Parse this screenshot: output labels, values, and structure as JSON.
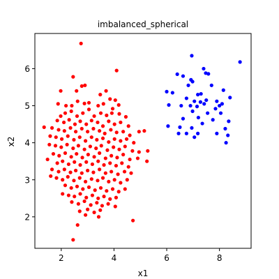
{
  "chart_data": {
    "type": "scatter",
    "title": "imbalanced_spherical",
    "xlabel": "x1",
    "ylabel": "x2",
    "xlim": [
      1.0,
      9.2
    ],
    "ylim": [
      1.15,
      6.95
    ],
    "xticks": [
      2,
      4,
      6,
      8
    ],
    "yticks": [
      2,
      3,
      4,
      5,
      6
    ],
    "grid": false,
    "series": [
      {
        "color": "#ff0000",
        "points": [
          [
            2.75,
            6.68
          ],
          [
            2.45,
            5.78
          ],
          [
            4.1,
            5.95
          ],
          [
            1.98,
            5.4
          ],
          [
            2.78,
            5.53
          ],
          [
            2.9,
            5.55
          ],
          [
            2.58,
            5.4
          ],
          [
            3.48,
            5.3
          ],
          [
            3.7,
            5.4
          ],
          [
            1.88,
            5.05
          ],
          [
            2.18,
            5.0
          ],
          [
            2.4,
            5.0
          ],
          [
            2.62,
            5.12
          ],
          [
            2.88,
            5.06
          ],
          [
            3.05,
            5.08
          ],
          [
            3.4,
            5.0
          ],
          [
            3.6,
            5.05
          ],
          [
            3.85,
            5.18
          ],
          [
            4.05,
            5.15
          ],
          [
            4.18,
            5.02
          ],
          [
            3.95,
            4.92
          ],
          [
            1.98,
            4.72
          ],
          [
            2.15,
            4.8
          ],
          [
            2.38,
            4.85
          ],
          [
            2.6,
            4.72
          ],
          [
            2.82,
            4.8
          ],
          [
            3.05,
            4.9
          ],
          [
            3.25,
            4.72
          ],
          [
            3.5,
            4.8
          ],
          [
            3.72,
            4.74
          ],
          [
            3.92,
            4.8
          ],
          [
            4.2,
            4.78
          ],
          [
            4.45,
            4.7
          ],
          [
            1.85,
            4.6
          ],
          [
            2.1,
            4.55
          ],
          [
            2.3,
            4.62
          ],
          [
            2.52,
            4.5
          ],
          [
            2.72,
            4.58
          ],
          [
            2.95,
            4.5
          ],
          [
            3.15,
            4.6
          ],
          [
            3.38,
            4.55
          ],
          [
            3.58,
            4.45
          ],
          [
            3.8,
            4.58
          ],
          [
            4.02,
            4.5
          ],
          [
            4.25,
            4.55
          ],
          [
            4.55,
            4.45
          ],
          [
            1.65,
            4.4
          ],
          [
            1.9,
            4.35
          ],
          [
            2.12,
            4.32
          ],
          [
            2.35,
            4.4
          ],
          [
            2.55,
            4.3
          ],
          [
            2.78,
            4.38
          ],
          [
            3.0,
            4.3
          ],
          [
            3.22,
            4.38
          ],
          [
            3.45,
            4.32
          ],
          [
            3.65,
            4.25
          ],
          [
            3.88,
            4.35
          ],
          [
            4.1,
            4.28
          ],
          [
            4.35,
            4.3
          ],
          [
            4.6,
            4.2
          ],
          [
            4.95,
            4.3
          ],
          [
            5.15,
            4.32
          ],
          [
            1.35,
            4.42
          ],
          [
            1.58,
            4.18
          ],
          [
            1.8,
            4.15
          ],
          [
            2.02,
            4.1
          ],
          [
            2.25,
            4.18
          ],
          [
            2.48,
            4.08
          ],
          [
            2.7,
            4.15
          ],
          [
            2.92,
            4.05
          ],
          [
            3.15,
            4.15
          ],
          [
            3.35,
            4.08
          ],
          [
            3.58,
            4.12
          ],
          [
            3.8,
            4.02
          ],
          [
            4.02,
            4.1
          ],
          [
            4.25,
            4.05
          ],
          [
            4.48,
            4.1
          ],
          [
            4.75,
            4.0
          ],
          [
            1.55,
            3.95
          ],
          [
            1.78,
            3.92
          ],
          [
            2.0,
            3.88
          ],
          [
            2.22,
            3.95
          ],
          [
            2.45,
            3.85
          ],
          [
            2.65,
            3.92
          ],
          [
            2.88,
            3.82
          ],
          [
            3.1,
            3.9
          ],
          [
            3.32,
            3.85
          ],
          [
            3.52,
            3.92
          ],
          [
            3.75,
            3.8
          ],
          [
            3.98,
            3.88
          ],
          [
            4.2,
            3.82
          ],
          [
            4.42,
            3.9
          ],
          [
            4.7,
            3.78
          ],
          [
            4.95,
            3.75
          ],
          [
            1.7,
            3.7
          ],
          [
            1.92,
            3.65
          ],
          [
            2.15,
            3.72
          ],
          [
            2.38,
            3.62
          ],
          [
            2.58,
            3.7
          ],
          [
            2.8,
            3.6
          ],
          [
            3.02,
            3.68
          ],
          [
            3.25,
            3.62
          ],
          [
            3.45,
            3.72
          ],
          [
            3.68,
            3.58
          ],
          [
            3.9,
            3.65
          ],
          [
            4.12,
            3.6
          ],
          [
            4.35,
            3.68
          ],
          [
            4.6,
            3.55
          ],
          [
            4.9,
            3.58
          ],
          [
            5.28,
            3.78
          ],
          [
            1.48,
            3.55
          ],
          [
            1.85,
            3.45
          ],
          [
            2.05,
            3.5
          ],
          [
            2.28,
            3.42
          ],
          [
            2.5,
            3.48
          ],
          [
            2.72,
            3.4
          ],
          [
            2.95,
            3.48
          ],
          [
            3.18,
            3.42
          ],
          [
            3.4,
            3.5
          ],
          [
            3.62,
            3.4
          ],
          [
            3.85,
            3.45
          ],
          [
            4.08,
            3.38
          ],
          [
            4.3,
            3.45
          ],
          [
            4.55,
            3.35
          ],
          [
            5.25,
            3.5
          ],
          [
            1.65,
            3.28
          ],
          [
            1.9,
            3.22
          ],
          [
            2.12,
            3.28
          ],
          [
            2.35,
            3.2
          ],
          [
            2.55,
            3.25
          ],
          [
            2.78,
            3.18
          ],
          [
            3.0,
            3.25
          ],
          [
            3.22,
            3.2
          ],
          [
            3.45,
            3.28
          ],
          [
            3.68,
            3.18
          ],
          [
            3.9,
            3.22
          ],
          [
            4.15,
            3.15
          ],
          [
            4.4,
            3.22
          ],
          [
            4.65,
            3.18
          ],
          [
            1.6,
            3.1
          ],
          [
            1.82,
            3.05
          ],
          [
            2.05,
            3.0
          ],
          [
            2.25,
            3.08
          ],
          [
            2.48,
            2.98
          ],
          [
            2.7,
            3.05
          ],
          [
            2.92,
            2.95
          ],
          [
            3.15,
            3.02
          ],
          [
            3.38,
            2.98
          ],
          [
            3.58,
            3.05
          ],
          [
            3.8,
            2.95
          ],
          [
            4.02,
            3.0
          ],
          [
            4.25,
            2.92
          ],
          [
            4.5,
            3.0
          ],
          [
            2.15,
            2.85
          ],
          [
            2.38,
            2.78
          ],
          [
            2.6,
            2.82
          ],
          [
            2.82,
            2.75
          ],
          [
            3.05,
            2.8
          ],
          [
            3.28,
            2.72
          ],
          [
            3.5,
            2.78
          ],
          [
            3.72,
            2.7
          ],
          [
            3.95,
            2.75
          ],
          [
            4.18,
            2.68
          ],
          [
            4.42,
            2.75
          ],
          [
            2.05,
            2.62
          ],
          [
            2.28,
            2.58
          ],
          [
            2.5,
            2.55
          ],
          [
            2.72,
            2.62
          ],
          [
            2.95,
            2.52
          ],
          [
            3.18,
            2.58
          ],
          [
            3.4,
            2.5
          ],
          [
            3.62,
            2.55
          ],
          [
            3.85,
            2.48
          ],
          [
            4.08,
            2.52
          ],
          [
            2.4,
            2.4
          ],
          [
            2.65,
            2.35
          ],
          [
            2.88,
            2.42
          ],
          [
            3.12,
            2.32
          ],
          [
            3.35,
            2.38
          ],
          [
            3.55,
            2.3
          ],
          [
            3.78,
            2.35
          ],
          [
            4.05,
            2.28
          ],
          [
            2.7,
            2.15
          ],
          [
            3.0,
            2.2
          ],
          [
            3.25,
            2.12
          ],
          [
            3.48,
            2.18
          ],
          [
            2.92,
            2.05
          ],
          [
            3.42,
            2.0
          ],
          [
            4.72,
            1.9
          ],
          [
            2.62,
            1.78
          ],
          [
            2.45,
            1.38
          ]
        ]
      },
      {
        "color": "#0000ff",
        "points": [
          [
            6.95,
            6.35
          ],
          [
            8.78,
            6.18
          ],
          [
            7.4,
            6.0
          ],
          [
            6.4,
            5.85
          ],
          [
            6.62,
            5.8
          ],
          [
            7.48,
            5.88
          ],
          [
            7.58,
            5.86
          ],
          [
            6.92,
            5.7
          ],
          [
            6.98,
            5.65
          ],
          [
            6.82,
            5.55
          ],
          [
            7.7,
            5.55
          ],
          [
            6.0,
            5.38
          ],
          [
            6.22,
            5.35
          ],
          [
            7.18,
            5.3
          ],
          [
            7.3,
            5.32
          ],
          [
            8.15,
            5.42
          ],
          [
            6.75,
            5.2
          ],
          [
            7.05,
            5.12
          ],
          [
            7.28,
            5.1
          ],
          [
            7.5,
            5.15
          ],
          [
            8.4,
            5.22
          ],
          [
            6.08,
            5.02
          ],
          [
            6.55,
            5.0
          ],
          [
            6.9,
            5.0
          ],
          [
            7.15,
            4.98
          ],
          [
            7.42,
            5.05
          ],
          [
            7.9,
            5.12
          ],
          [
            8.0,
            5.0
          ],
          [
            8.1,
            5.05
          ],
          [
            7.85,
            4.92
          ],
          [
            6.98,
            4.85
          ],
          [
            7.55,
            4.8
          ],
          [
            8.05,
            4.8
          ],
          [
            6.62,
            4.65
          ],
          [
            7.2,
            4.68
          ],
          [
            7.75,
            4.62
          ],
          [
            8.35,
            4.58
          ],
          [
            6.05,
            4.45
          ],
          [
            6.5,
            4.42
          ],
          [
            6.95,
            4.4
          ],
          [
            7.35,
            4.52
          ],
          [
            8.22,
            4.38
          ],
          [
            6.45,
            4.25
          ],
          [
            6.75,
            4.25
          ],
          [
            7.18,
            4.25
          ],
          [
            7.9,
            4.25
          ],
          [
            8.32,
            4.2
          ],
          [
            7.05,
            4.15
          ],
          [
            8.25,
            4.0
          ]
        ]
      }
    ]
  }
}
